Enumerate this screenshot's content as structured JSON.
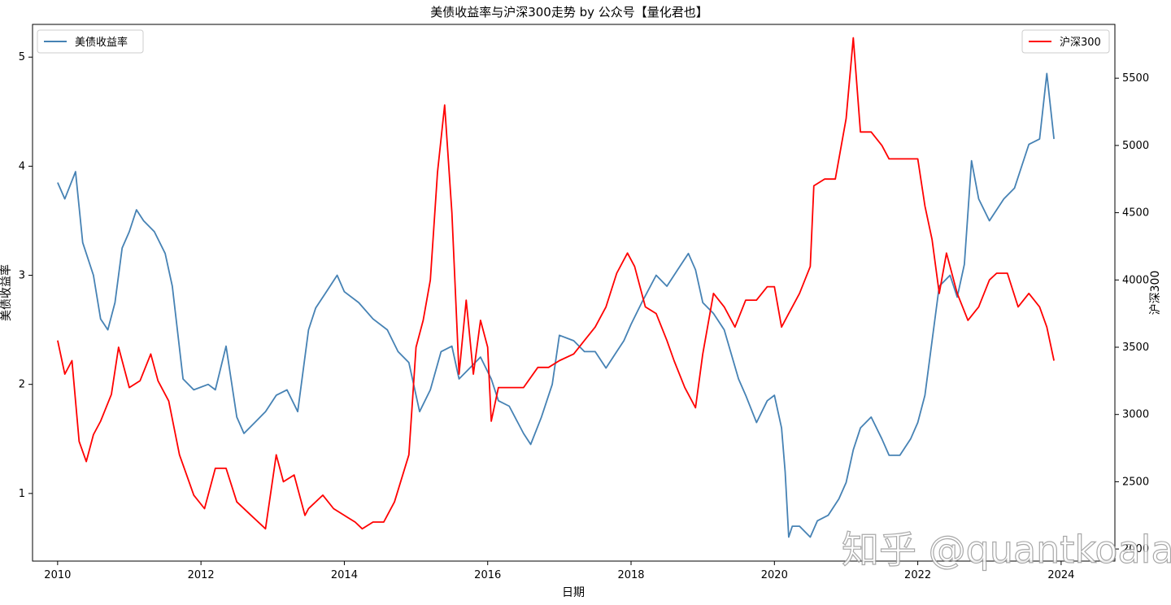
{
  "chart_data": {
    "type": "line",
    "title": "美债收益率与沪深300走势 by 公众号【量化君也】",
    "xlabel": "日期",
    "ylabel_left": "美债收益率",
    "ylabel_right": "沪深300",
    "x_range": [
      2009.65,
      2024.75
    ],
    "x_ticks": [
      2010,
      2012,
      2014,
      2016,
      2018,
      2020,
      2022,
      2024
    ],
    "x_tick_labels": [
      "2010",
      "2012",
      "2014",
      "2016",
      "2018",
      "2020",
      "2022",
      "2024"
    ],
    "y_left_range": [
      0.38,
      5.3
    ],
    "y_left_ticks": [
      1,
      2,
      3,
      4,
      5
    ],
    "y_left_tick_labels": [
      "1",
      "2",
      "3",
      "4",
      "5"
    ],
    "y_right_range": [
      1910,
      5900
    ],
    "y_right_ticks": [
      2000,
      2500,
      3000,
      3500,
      4000,
      4500,
      5000,
      5500
    ],
    "y_right_tick_labels": [
      "2000",
      "2500",
      "3000",
      "3500",
      "4000",
      "4500",
      "5000",
      "5500"
    ],
    "grid": false,
    "legend_left": {
      "placement": "top-left",
      "label": "美债收益率",
      "color": "#4682b4"
    },
    "legend_right": {
      "placement": "top-right",
      "label": "沪深300",
      "color": "#ff0000"
    },
    "series": [
      {
        "name": "美债收益率",
        "axis": "left",
        "color": "#4682b4",
        "x": [
          2010.0,
          2010.1,
          2010.25,
          2010.35,
          2010.5,
          2010.6,
          2010.7,
          2010.8,
          2010.9,
          2011.0,
          2011.1,
          2011.2,
          2011.35,
          2011.5,
          2011.6,
          2011.75,
          2011.9,
          2012.1,
          2012.2,
          2012.35,
          2012.5,
          2012.6,
          2012.75,
          2012.9,
          2013.05,
          2013.2,
          2013.35,
          2013.5,
          2013.6,
          2013.75,
          2013.9,
          2014.0,
          2014.2,
          2014.4,
          2014.6,
          2014.75,
          2014.9,
          2015.05,
          2015.2,
          2015.35,
          2015.5,
          2015.6,
          2015.75,
          2015.9,
          2016.05,
          2016.15,
          2016.3,
          2016.5,
          2016.6,
          2016.75,
          2016.9,
          2017.0,
          2017.2,
          2017.35,
          2017.5,
          2017.65,
          2017.8,
          2017.9,
          2018.0,
          2018.15,
          2018.35,
          2018.5,
          2018.65,
          2018.8,
          2018.9,
          2019.0,
          2019.15,
          2019.3,
          2019.5,
          2019.6,
          2019.75,
          2019.9,
          2020.0,
          2020.1,
          2020.15,
          2020.2,
          2020.25,
          2020.35,
          2020.5,
          2020.6,
          2020.75,
          2020.9,
          2021.0,
          2021.1,
          2021.2,
          2021.35,
          2021.5,
          2021.6,
          2021.75,
          2021.9,
          2022.0,
          2022.1,
          2022.2,
          2022.3,
          2022.45,
          2022.55,
          2022.65,
          2022.75,
          2022.85,
          2023.0,
          2023.1,
          2023.2,
          2023.35,
          2023.45,
          2023.55,
          2023.7,
          2023.8,
          2023.9
        ],
        "y": [
          3.85,
          3.7,
          3.95,
          3.3,
          3.0,
          2.6,
          2.5,
          2.75,
          3.25,
          3.4,
          3.6,
          3.5,
          3.4,
          3.2,
          2.9,
          2.05,
          1.95,
          2.0,
          1.95,
          2.35,
          1.7,
          1.55,
          1.65,
          1.75,
          1.9,
          1.95,
          1.75,
          2.5,
          2.7,
          2.85,
          3.0,
          2.85,
          2.75,
          2.6,
          2.5,
          2.3,
          2.2,
          1.75,
          1.95,
          2.3,
          2.35,
          2.05,
          2.15,
          2.25,
          2.05,
          1.85,
          1.8,
          1.55,
          1.45,
          1.7,
          2.0,
          2.45,
          2.4,
          2.3,
          2.3,
          2.15,
          2.3,
          2.4,
          2.55,
          2.75,
          3.0,
          2.9,
          3.05,
          3.2,
          3.05,
          2.75,
          2.65,
          2.5,
          2.05,
          1.9,
          1.65,
          1.85,
          1.9,
          1.6,
          1.2,
          0.6,
          0.7,
          0.7,
          0.6,
          0.75,
          0.8,
          0.95,
          1.1,
          1.4,
          1.6,
          1.7,
          1.5,
          1.35,
          1.35,
          1.5,
          1.65,
          1.9,
          2.4,
          2.9,
          3.0,
          2.8,
          3.1,
          4.05,
          3.7,
          3.5,
          3.6,
          3.7,
          3.8,
          4.0,
          4.2,
          4.25,
          4.85,
          4.25
        ]
      },
      {
        "name": "沪深300",
        "axis": "right",
        "color": "#ff0000",
        "x": [
          2010.0,
          2010.1,
          2010.2,
          2010.3,
          2010.4,
          2010.5,
          2010.6,
          2010.75,
          2010.85,
          2011.0,
          2011.15,
          2011.3,
          2011.4,
          2011.55,
          2011.7,
          2011.8,
          2011.9,
          2012.05,
          2012.2,
          2012.35,
          2012.5,
          2012.7,
          2012.9,
          2013.05,
          2013.15,
          2013.3,
          2013.45,
          2013.5,
          2013.7,
          2013.85,
          2014.0,
          2014.15,
          2014.25,
          2014.4,
          2014.55,
          2014.7,
          2014.9,
          2015.0,
          2015.1,
          2015.2,
          2015.3,
          2015.4,
          2015.5,
          2015.6,
          2015.7,
          2015.8,
          2015.9,
          2016.0,
          2016.05,
          2016.15,
          2016.35,
          2016.5,
          2016.7,
          2016.85,
          2017.0,
          2017.2,
          2017.35,
          2017.5,
          2017.65,
          2017.8,
          2017.95,
          2018.05,
          2018.2,
          2018.35,
          2018.5,
          2018.6,
          2018.75,
          2018.9,
          2019.0,
          2019.15,
          2019.3,
          2019.45,
          2019.6,
          2019.75,
          2019.9,
          2020.0,
          2020.1,
          2020.2,
          2020.35,
          2020.5,
          2020.55,
          2020.7,
          2020.85,
          2021.0,
          2021.1,
          2021.2,
          2021.35,
          2021.5,
          2021.6,
          2021.75,
          2021.9,
          2022.0,
          2022.1,
          2022.2,
          2022.3,
          2022.4,
          2022.55,
          2022.7,
          2022.85,
          2023.0,
          2023.1,
          2023.25,
          2023.4,
          2023.55,
          2023.7,
          2023.8,
          2023.9
        ],
        "y": [
          3550,
          3300,
          3400,
          2800,
          2650,
          2850,
          2950,
          3150,
          3500,
          3200,
          3250,
          3450,
          3250,
          3100,
          2700,
          2550,
          2400,
          2300,
          2600,
          2600,
          2350,
          2250,
          2150,
          2700,
          2500,
          2550,
          2250,
          2300,
          2400,
          2300,
          2250,
          2200,
          2150,
          2200,
          2200,
          2350,
          2700,
          3500,
          3700,
          4000,
          4800,
          5300,
          4500,
          3300,
          3850,
          3300,
          3700,
          3500,
          2950,
          3200,
          3200,
          3200,
          3350,
          3350,
          3400,
          3450,
          3550,
          3650,
          3800,
          4050,
          4200,
          4100,
          3800,
          3750,
          3550,
          3400,
          3200,
          3050,
          3450,
          3900,
          3800,
          3650,
          3850,
          3850,
          3950,
          3950,
          3650,
          3750,
          3900,
          4100,
          4700,
          4750,
          4750,
          5200,
          5800,
          5100,
          5100,
          5000,
          4900,
          4900,
          4900,
          4900,
          4550,
          4300,
          3900,
          4200,
          3900,
          3700,
          3800,
          4000,
          4050,
          4050,
          3800,
          3900,
          3800,
          3650,
          3400
        ]
      }
    ],
    "watermark": "知乎 @quantkoala"
  }
}
